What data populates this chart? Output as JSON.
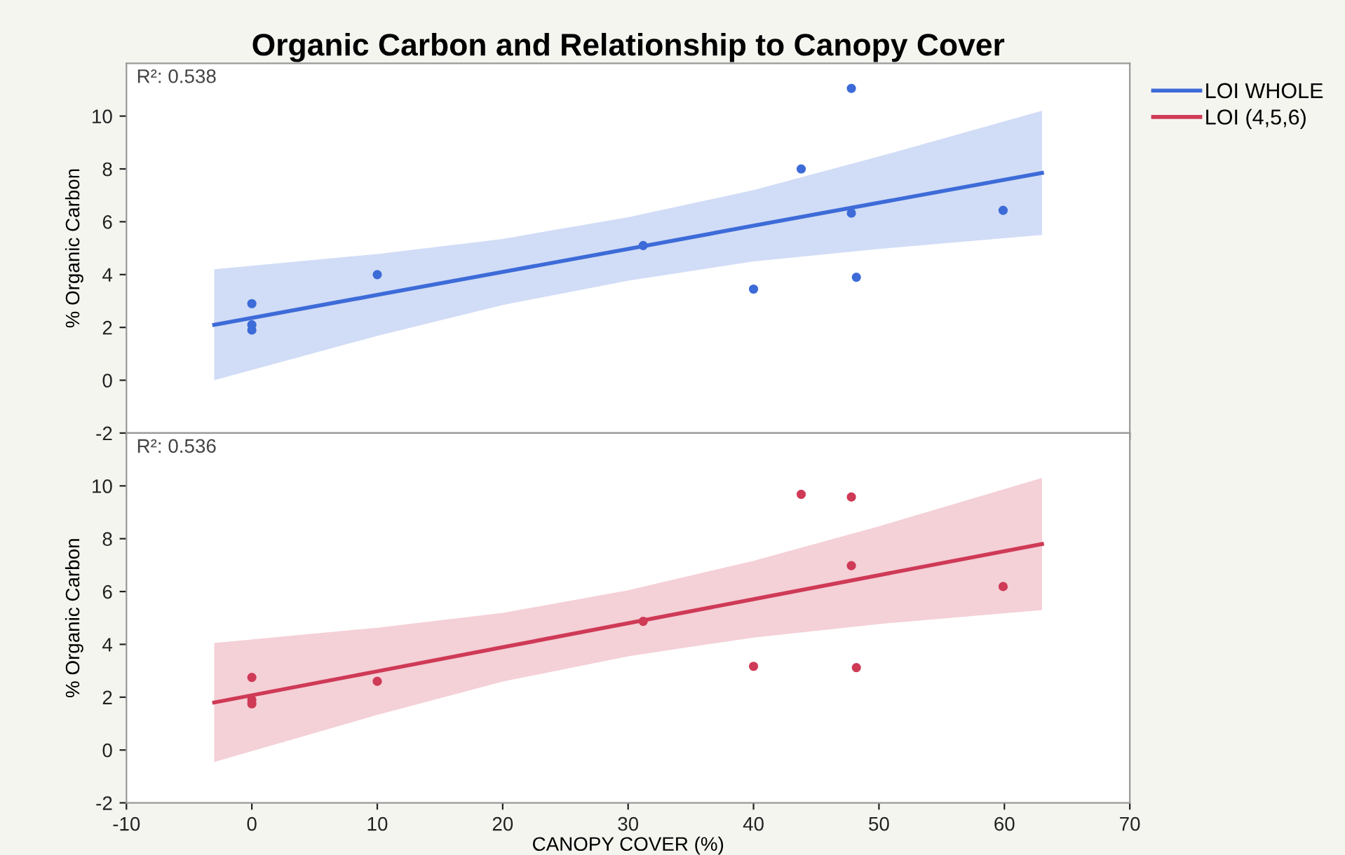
{
  "chart_data": [
    {
      "type": "scatter",
      "title": "Organic Carbon and Relationship to Canopy Cover",
      "ylabel": "% Organic Carbon",
      "annotations": [
        "R²: 0.538"
      ],
      "xlim": [
        -10,
        70
      ],
      "xticks": [
        -10,
        0,
        10,
        20,
        30,
        40,
        50,
        60,
        70
      ],
      "ylim": [
        -2,
        12
      ],
      "yticks": [
        -2,
        0,
        2,
        4,
        6,
        8,
        10
      ],
      "tick_labels": "y",
      "grid": false,
      "legend": "right",
      "series": [
        {
          "color": "#3d6bd8",
          "marker": "circle",
          "x": [
            0,
            0,
            0,
            10,
            31.2,
            40,
            43.8,
            47.8,
            47.8,
            48.2,
            59.9
          ],
          "values": [
            2.9,
            2.1,
            1.9,
            4.0,
            5.1,
            3.45,
            8.0,
            11.05,
            6.33,
            3.9,
            6.43
          ]
        },
        {
          "type": "line",
          "name": "LOI WHOLE",
          "color": "#3d6bd8",
          "marker": "none",
          "line_style": "solid",
          "x": [
            -3,
            10,
            20,
            30,
            40,
            50,
            63
          ],
          "values": [
            2.1,
            3.23,
            4.1,
            4.97,
            5.85,
            6.72,
            7.85
          ],
          "lower": [
            0.0,
            1.68,
            2.85,
            3.77,
            4.5,
            4.97,
            5.5
          ],
          "upper": [
            4.2,
            4.78,
            5.35,
            6.17,
            7.2,
            8.47,
            10.2
          ]
        }
      ]
    },
    {
      "type": "scatter",
      "xlabel": "CANOPY COVER (%)",
      "ylabel": "% Organic Carbon",
      "annotations": [
        "R²: 0.536"
      ],
      "xlim": [
        -10,
        70
      ],
      "xticks": [
        -10,
        0,
        10,
        20,
        30,
        40,
        50,
        60,
        70
      ],
      "ylim": [
        -2,
        12
      ],
      "yticks": [
        -2,
        0,
        2,
        4,
        6,
        8,
        10
      ],
      "grid": false,
      "legend": "right",
      "series": [
        {
          "color": "#cf3a56",
          "marker": "circle",
          "x": [
            0,
            0,
            0,
            10,
            31.2,
            40,
            43.8,
            47.8,
            47.8,
            48.2,
            59.9
          ],
          "values": [
            2.75,
            1.9,
            1.75,
            2.6,
            4.87,
            3.17,
            9.68,
            9.58,
            6.98,
            3.12,
            6.19
          ]
        },
        {
          "type": "line",
          "name": "LOI (4,5,6)",
          "color": "#cf3a56",
          "marker": "none",
          "line_style": "solid",
          "x": [
            -3,
            10,
            20,
            30,
            40,
            50,
            63
          ],
          "values": [
            1.8,
            2.98,
            3.89,
            4.8,
            5.71,
            6.62,
            7.8
          ],
          "lower": [
            -0.45,
            1.33,
            2.59,
            3.55,
            4.26,
            4.77,
            5.3
          ],
          "upper": [
            4.05,
            4.63,
            5.19,
            6.05,
            7.16,
            8.47,
            10.3
          ]
        }
      ]
    }
  ]
}
